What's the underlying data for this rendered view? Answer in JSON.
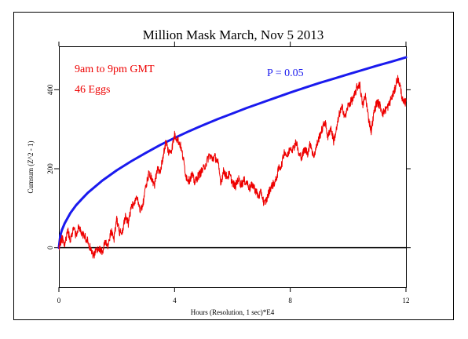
{
  "chart_data": {
    "type": "line",
    "title": "Million Mask March, Nov 5 2013",
    "xlabel": "Hours (Resolution, 1 sec)*E4",
    "ylabel": "Cumsum (Z^2 - 1)",
    "xlim": [
      0,
      12
    ],
    "ylim": [
      -100,
      510
    ],
    "x_ticks": [
      "0",
      "4",
      "8",
      "12"
    ],
    "y_ticks": [
      "0",
      "200",
      "400"
    ],
    "annotations": [
      "9am to 9pm GMT",
      "46 Eggs",
      "P = 0.05"
    ],
    "colors": {
      "cumsum": "#ee0000",
      "threshold": "#1a1aee",
      "baseline": "#000000"
    },
    "series": [
      {
        "name": "P = 0.05",
        "style": "smooth",
        "x": [
          0,
          0.05,
          0.1,
          0.2,
          0.4,
          0.6,
          0.8,
          1,
          1.5,
          2,
          2.5,
          3,
          3.5,
          4,
          4.5,
          5,
          5.5,
          6,
          6.5,
          7,
          7.5,
          8,
          8.5,
          9,
          9.5,
          10,
          10.5,
          11,
          11.5,
          12
        ],
        "values": [
          0,
          31,
          44,
          62,
          88,
          108,
          124,
          139,
          170,
          196,
          219,
          240,
          260,
          278,
          295,
          311,
          326,
          340,
          354,
          367,
          380,
          393,
          405,
          417,
          428,
          439,
          450,
          461,
          471,
          482
        ]
      },
      {
        "name": "Cumsum",
        "style": "noisy",
        "x": [
          0,
          0.1,
          0.2,
          0.3,
          0.4,
          0.5,
          0.6,
          0.7,
          0.8,
          0.9,
          1.0,
          1.1,
          1.2,
          1.3,
          1.4,
          1.5,
          1.6,
          1.7,
          1.8,
          1.9,
          2.0,
          2.1,
          2.2,
          2.3,
          2.4,
          2.5,
          2.6,
          2.7,
          2.8,
          2.9,
          3.0,
          3.1,
          3.2,
          3.3,
          3.4,
          3.5,
          3.6,
          3.7,
          3.8,
          3.9,
          4.0,
          4.1,
          4.2,
          4.3,
          4.4,
          4.5,
          4.6,
          4.7,
          4.8,
          4.9,
          5.0,
          5.1,
          5.2,
          5.3,
          5.4,
          5.5,
          5.6,
          5.7,
          5.8,
          5.9,
          6.0,
          6.1,
          6.2,
          6.3,
          6.4,
          6.5,
          6.6,
          6.7,
          6.8,
          6.9,
          7.0,
          7.1,
          7.2,
          7.3,
          7.4,
          7.5,
          7.6,
          7.7,
          7.8,
          7.9,
          8.0,
          8.1,
          8.2,
          8.3,
          8.4,
          8.5,
          8.6,
          8.7,
          8.8,
          8.9,
          9.0,
          9.1,
          9.2,
          9.3,
          9.4,
          9.5,
          9.6,
          9.7,
          9.8,
          9.9,
          10.0,
          10.1,
          10.2,
          10.3,
          10.4,
          10.5,
          10.6,
          10.7,
          10.8,
          10.9,
          11.0,
          11.1,
          11.2,
          11.3,
          11.4,
          11.5,
          11.6,
          11.7,
          11.8,
          11.9,
          12.0
        ],
        "values": [
          0,
          25,
          5,
          45,
          20,
          50,
          30,
          55,
          35,
          30,
          15,
          -5,
          -20,
          -5,
          0,
          -10,
          15,
          5,
          45,
          20,
          70,
          40,
          45,
          80,
          60,
          100,
          115,
          130,
          95,
          110,
          150,
          185,
          180,
          155,
          200,
          190,
          230,
          270,
          240,
          250,
          285,
          275,
          260,
          225,
          180,
          170,
          185,
          165,
          180,
          190,
          200,
          215,
          235,
          225,
          230,
          215,
          165,
          195,
          180,
          185,
          165,
          155,
          175,
          160,
          170,
          165,
          150,
          160,
          145,
          130,
          140,
          110,
          125,
          150,
          160,
          170,
          200,
          210,
          245,
          230,
          255,
          250,
          270,
          235,
          230,
          250,
          240,
          265,
          230,
          255,
          280,
          300,
          320,
          280,
          305,
          270,
          300,
          340,
          355,
          330,
          360,
          370,
          380,
          405,
          415,
          360,
          385,
          330,
          295,
          345,
          370,
          360,
          340,
          350,
          360,
          380,
          395,
          430,
          410,
          365,
          370
        ]
      }
    ],
    "baseline": 0
  }
}
